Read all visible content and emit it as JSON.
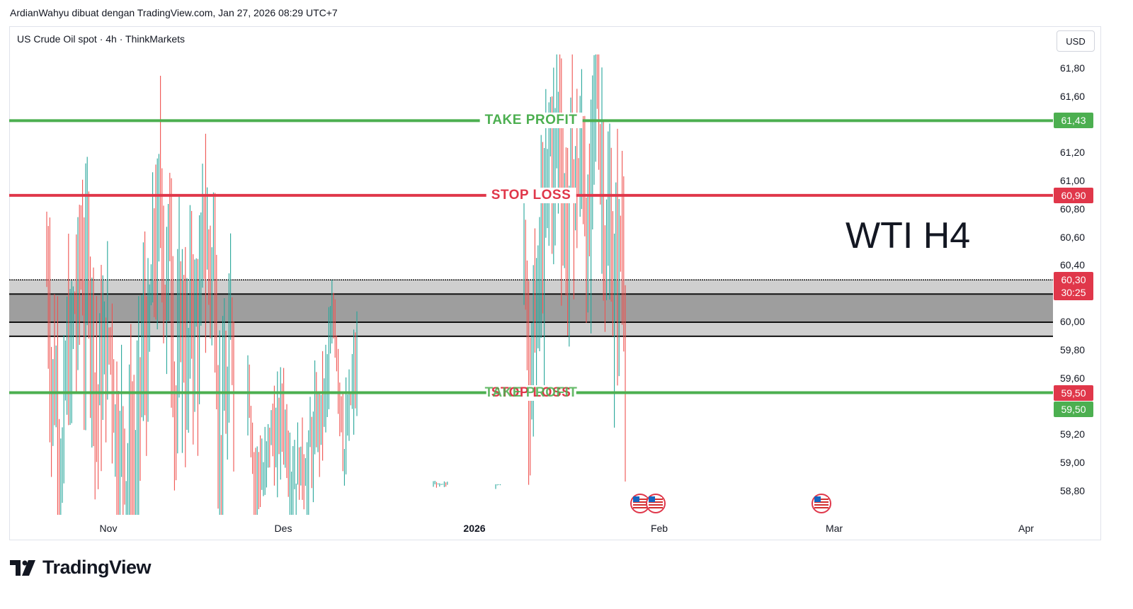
{
  "header": {
    "caption": "ArdianWahyu dibuat dengan TradingView.com, Jan 27, 2026 08:29 UTC+7"
  },
  "chart_header": {
    "symbol_line": "US Crude Oil spot · 4h · ThinkMarkets",
    "currency": "USD"
  },
  "watermark_text": "WTI H4",
  "branding": {
    "logo_text": "TradingView"
  },
  "colors": {
    "take_profit": "#4caf50",
    "stop_loss": "#e0374a",
    "up_candle": "#26a69a",
    "down_candle": "#ef5350",
    "zone_outer": "#cfcfcf",
    "zone_inner": "#9e9e9e"
  },
  "chart_data": {
    "type": "candlestick",
    "title": "US Crude Oil spot · 4h · ThinkMarkets",
    "currency": "USD",
    "y_axis_ticks": [
      "61,80",
      "61,60",
      "61,20",
      "61,00",
      "60,80",
      "60,60",
      "60,40",
      "60,00",
      "59,80",
      "59,60",
      "59,20",
      "59,00",
      "58,80"
    ],
    "y_tick_values": [
      61.8,
      61.6,
      61.2,
      61.0,
      60.8,
      60.6,
      60.4,
      60.0,
      59.8,
      59.6,
      59.2,
      59.0,
      58.8
    ],
    "x_axis_ticks": [
      {
        "label": "Nov",
        "bold": false
      },
      {
        "label": "Des",
        "bold": false
      },
      {
        "label": "2026",
        "bold": true
      },
      {
        "label": "Feb",
        "bold": false
      },
      {
        "label": "Mar",
        "bold": false
      },
      {
        "label": "Apr",
        "bold": false
      }
    ],
    "levels": [
      {
        "name": "TAKE PROFIT",
        "price": 61.43,
        "badge": "61,43",
        "color": "#4caf50"
      },
      {
        "name": "STOP LOSS",
        "price": 60.9,
        "badge": "60,90",
        "color": "#e0374a"
      },
      {
        "name": "STOP LOSS",
        "price": 59.5,
        "badge": "59,50",
        "color": "#e0374a"
      },
      {
        "name": "TAKE PROFIT",
        "price": 59.5,
        "badge": "59,50",
        "color": "#4caf50"
      }
    ],
    "zone": {
      "outer_top": 60.3,
      "outer_bottom": 59.9,
      "inner_top": 60.2,
      "inner_bottom": 60.0
    },
    "last_price": {
      "value": "60,30",
      "countdown": "30:25"
    },
    "economic_events": 3,
    "candle_clusters": [
      {
        "label": "late Oct to mid Nov",
        "price_range": [
          58.8,
          61.9
        ]
      },
      {
        "label": "mid Nov to mid Dec",
        "price_range": [
          58.8,
          61.2
        ]
      },
      {
        "label": "Jan 2026",
        "price_range": [
          58.8,
          61.9
        ]
      }
    ]
  }
}
